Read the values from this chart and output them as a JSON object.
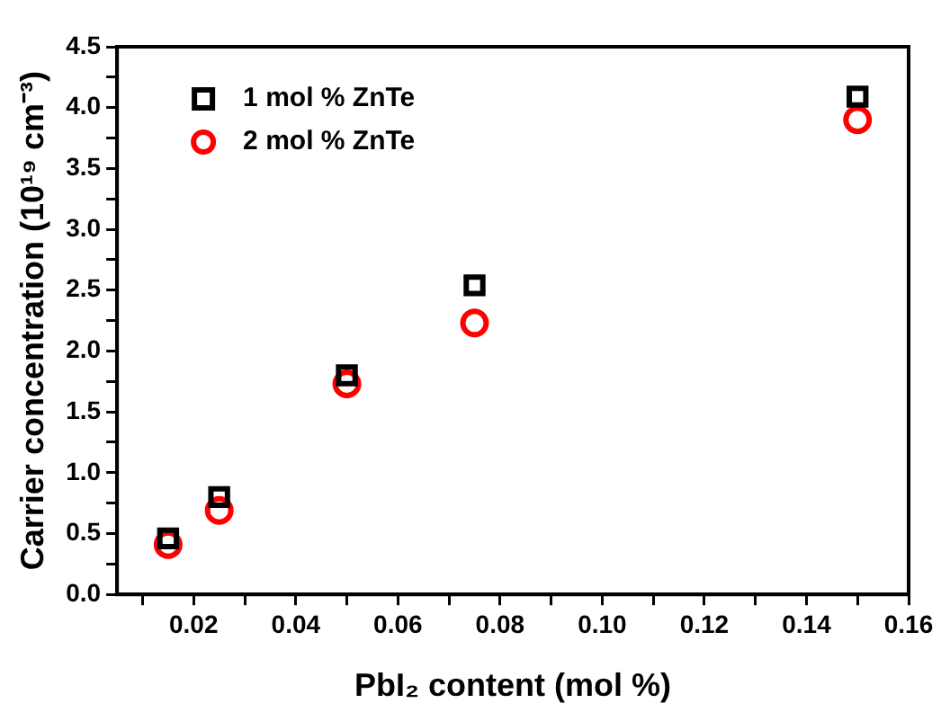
{
  "chart_data": {
    "type": "scatter",
    "xlabel": "PbI₂ content (mol %)",
    "ylabel": "Carrier concentration (10¹⁹ cm⁻³)",
    "x": [
      0.015,
      0.025,
      0.05,
      0.075,
      0.15
    ],
    "series": [
      {
        "name": "1 mol % ZnTe",
        "color": "#000000",
        "marker": "square",
        "values": [
          0.46,
          0.8,
          1.8,
          2.54,
          4.09
        ]
      },
      {
        "name": "2 mol % ZnTe",
        "color": "#ff0000",
        "marker": "circle",
        "values": [
          0.41,
          0.69,
          1.73,
          2.23,
          3.9
        ]
      }
    ],
    "xlim": [
      0.005,
      0.16
    ],
    "xticks": [
      {
        "value": 0.01,
        "label": null
      },
      {
        "value": 0.02,
        "label": "0.02"
      },
      {
        "value": 0.03,
        "label": null
      },
      {
        "value": 0.04,
        "label": "0.04"
      },
      {
        "value": 0.05,
        "label": null
      },
      {
        "value": 0.06,
        "label": "0.06"
      },
      {
        "value": 0.07,
        "label": null
      },
      {
        "value": 0.08,
        "label": "0.08"
      },
      {
        "value": 0.09,
        "label": null
      },
      {
        "value": 0.1,
        "label": "0.10"
      },
      {
        "value": 0.11,
        "label": null
      },
      {
        "value": 0.12,
        "label": "0.12"
      },
      {
        "value": 0.13,
        "label": null
      },
      {
        "value": 0.14,
        "label": "0.14"
      },
      {
        "value": 0.15,
        "label": null
      },
      {
        "value": 0.16,
        "label": "0.16"
      }
    ],
    "ylim": [
      0,
      4.5
    ],
    "yticks": [
      {
        "value": 0,
        "label": "0.0"
      },
      {
        "value": 0.25,
        "label": null
      },
      {
        "value": 0.5,
        "label": "0.5"
      },
      {
        "value": 0.75,
        "label": null
      },
      {
        "value": 1,
        "label": "1.0"
      },
      {
        "value": 1.25,
        "label": null
      },
      {
        "value": 1.5,
        "label": "1.5"
      },
      {
        "value": 1.75,
        "label": null
      },
      {
        "value": 2,
        "label": "2.0"
      },
      {
        "value": 2.25,
        "label": null
      },
      {
        "value": 2.5,
        "label": "2.5"
      },
      {
        "value": 2.75,
        "label": null
      },
      {
        "value": 3,
        "label": "3.0"
      },
      {
        "value": 3.25,
        "label": null
      },
      {
        "value": 3.5,
        "label": "3.5"
      },
      {
        "value": 3.75,
        "label": null
      },
      {
        "value": 4,
        "label": "4.0"
      },
      {
        "value": 4.25,
        "label": null
      },
      {
        "value": 4.5,
        "label": "4.5"
      }
    ],
    "grid": false,
    "legend": "top left"
  }
}
